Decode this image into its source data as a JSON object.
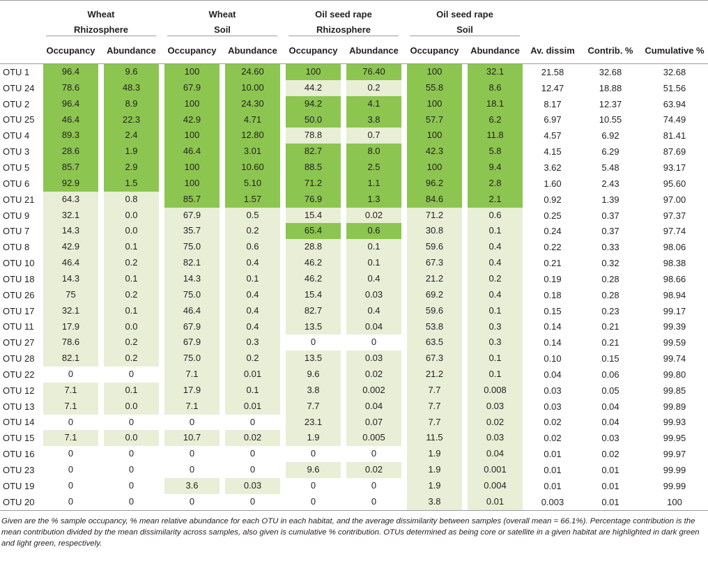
{
  "groups": [
    {
      "line1": "Wheat",
      "line2": "Rhizosphere"
    },
    {
      "line1": "Wheat",
      "line2": "Soil"
    },
    {
      "line1": "Oil seed rape",
      "line2": "Rhizosphere"
    },
    {
      "line1": "Oil seed rape",
      "line2": "Soil"
    }
  ],
  "headers": {
    "occupancy": "Occupancy",
    "abundance": "Abundance",
    "av_dissim": "Av. dissim",
    "contrib": "Contrib. %",
    "cumulative": "Cumulative %"
  },
  "rows": [
    {
      "otu": "OTU 1",
      "v": [
        "96.4",
        "9.6",
        "100",
        "24.60",
        "100",
        "76.40",
        "100",
        "32.1"
      ],
      "h": [
        "c",
        "c",
        "c",
        "c",
        "c",
        "c",
        "c",
        "c"
      ],
      "av": "21.58",
      "contrib": "32.68",
      "cum": "32.68"
    },
    {
      "otu": "OTU 24",
      "v": [
        "78.6",
        "48.3",
        "67.9",
        "10.00",
        "44.2",
        "0.2",
        "55.8",
        "8.6"
      ],
      "h": [
        "c",
        "c",
        "c",
        "c",
        "s",
        "s",
        "c",
        "c"
      ],
      "av": "12.47",
      "contrib": "18.88",
      "cum": "51.56"
    },
    {
      "otu": "OTU 2",
      "v": [
        "96.4",
        "8.9",
        "100",
        "24.30",
        "94.2",
        "4.1",
        "100",
        "18.1"
      ],
      "h": [
        "c",
        "c",
        "c",
        "c",
        "c",
        "c",
        "c",
        "c"
      ],
      "av": "8.17",
      "contrib": "12.37",
      "cum": "63.94"
    },
    {
      "otu": "OTU 25",
      "v": [
        "46.4",
        "22.3",
        "42.9",
        "4.71",
        "50.0",
        "3.8",
        "57.7",
        "6.2"
      ],
      "h": [
        "c",
        "c",
        "c",
        "c",
        "c",
        "c",
        "c",
        "c"
      ],
      "av": "6.97",
      "contrib": "10.55",
      "cum": "74.49"
    },
    {
      "otu": "OTU 4",
      "v": [
        "89.3",
        "2.4",
        "100",
        "12.80",
        "78.8",
        "0.7",
        "100",
        "11.8"
      ],
      "h": [
        "c",
        "c",
        "c",
        "c",
        "s",
        "s",
        "c",
        "c"
      ],
      "av": "4.57",
      "contrib": "6.92",
      "cum": "81.41"
    },
    {
      "otu": "OTU 3",
      "v": [
        "28.6",
        "1.9",
        "46.4",
        "3.01",
        "82.7",
        "8.0",
        "42.3",
        "5.8"
      ],
      "h": [
        "c",
        "c",
        "c",
        "c",
        "c",
        "c",
        "c",
        "c"
      ],
      "av": "4.15",
      "contrib": "6.29",
      "cum": "87.69"
    },
    {
      "otu": "OTU 5",
      "v": [
        "85.7",
        "2.9",
        "100",
        "10.60",
        "88.5",
        "2.5",
        "100",
        "9.4"
      ],
      "h": [
        "c",
        "c",
        "c",
        "c",
        "c",
        "c",
        "c",
        "c"
      ],
      "av": "3.62",
      "contrib": "5.48",
      "cum": "93.17"
    },
    {
      "otu": "OTU 6",
      "v": [
        "92.9",
        "1.5",
        "100",
        "5.10",
        "71.2",
        "1.1",
        "96.2",
        "2.8"
      ],
      "h": [
        "c",
        "c",
        "c",
        "c",
        "c",
        "c",
        "c",
        "c"
      ],
      "av": "1.60",
      "contrib": "2.43",
      "cum": "95.60"
    },
    {
      "otu": "OTU 21",
      "v": [
        "64.3",
        "0.8",
        "85.7",
        "1.57",
        "76.9",
        "1.3",
        "84.6",
        "2.1"
      ],
      "h": [
        "s",
        "s",
        "c",
        "c",
        "c",
        "c",
        "c",
        "c"
      ],
      "av": "0.92",
      "contrib": "1.39",
      "cum": "97.00"
    },
    {
      "otu": "OTU 9",
      "v": [
        "32.1",
        "0.0",
        "67.9",
        "0.5",
        "15.4",
        "0.02",
        "71.2",
        "0.6"
      ],
      "h": [
        "s",
        "s",
        "s",
        "s",
        "s",
        "s",
        "s",
        "s"
      ],
      "av": "0.25",
      "contrib": "0.37",
      "cum": "97.37"
    },
    {
      "otu": "OTU 7",
      "v": [
        "14.3",
        "0.0",
        "35.7",
        "0.2",
        "65.4",
        "0.6",
        "30.8",
        "0.1"
      ],
      "h": [
        "s",
        "s",
        "s",
        "s",
        "c",
        "c",
        "s",
        "s"
      ],
      "av": "0.24",
      "contrib": "0.37",
      "cum": "97.74"
    },
    {
      "otu": "OTU 8",
      "v": [
        "42.9",
        "0.1",
        "75.0",
        "0.6",
        "28.8",
        "0.1",
        "59.6",
        "0.4"
      ],
      "h": [
        "s",
        "s",
        "s",
        "s",
        "s",
        "s",
        "s",
        "s"
      ],
      "av": "0.22",
      "contrib": "0.33",
      "cum": "98.06"
    },
    {
      "otu": "OTU 10",
      "v": [
        "46.4",
        "0.2",
        "82.1",
        "0.4",
        "46.2",
        "0.1",
        "67.3",
        "0.4"
      ],
      "h": [
        "s",
        "s",
        "s",
        "s",
        "s",
        "s",
        "s",
        "s"
      ],
      "av": "0.21",
      "contrib": "0.32",
      "cum": "98.38"
    },
    {
      "otu": "OTU 18",
      "v": [
        "14.3",
        "0.1",
        "14.3",
        "0.1",
        "46.2",
        "0.4",
        "21.2",
        "0.2"
      ],
      "h": [
        "s",
        "s",
        "s",
        "s",
        "s",
        "s",
        "s",
        "s"
      ],
      "av": "0.19",
      "contrib": "0.28",
      "cum": "98.66"
    },
    {
      "otu": "OTU 26",
      "v": [
        "75",
        "0.2",
        "75.0",
        "0.4",
        "15.4",
        "0.03",
        "69.2",
        "0.4"
      ],
      "h": [
        "s",
        "s",
        "s",
        "s",
        "s",
        "s",
        "s",
        "s"
      ],
      "av": "0.18",
      "contrib": "0.28",
      "cum": "98.94"
    },
    {
      "otu": "OTU 17",
      "v": [
        "32.1",
        "0.1",
        "46.4",
        "0.4",
        "82.7",
        "0.4",
        "59.6",
        "0.1"
      ],
      "h": [
        "s",
        "s",
        "s",
        "s",
        "s",
        "s",
        "s",
        "s"
      ],
      "av": "0.15",
      "contrib": "0.23",
      "cum": "99.17"
    },
    {
      "otu": "OTU 11",
      "v": [
        "17.9",
        "0.0",
        "67.9",
        "0.4",
        "13.5",
        "0.04",
        "53.8",
        "0.3"
      ],
      "h": [
        "s",
        "s",
        "s",
        "s",
        "s",
        "s",
        "s",
        "s"
      ],
      "av": "0.14",
      "contrib": "0.21",
      "cum": "99.39"
    },
    {
      "otu": "OTU 27",
      "v": [
        "78.6",
        "0.2",
        "67.9",
        "0.3",
        "0",
        "0",
        "63.5",
        "0.3"
      ],
      "h": [
        "s",
        "s",
        "s",
        "s",
        "n",
        "n",
        "s",
        "s"
      ],
      "av": "0.14",
      "contrib": "0.21",
      "cum": "99.59"
    },
    {
      "otu": "OTU 28",
      "v": [
        "82.1",
        "0.2",
        "75.0",
        "0.2",
        "13.5",
        "0.03",
        "67.3",
        "0.1"
      ],
      "h": [
        "s",
        "s",
        "s",
        "s",
        "s",
        "s",
        "s",
        "s"
      ],
      "av": "0.10",
      "contrib": "0.15",
      "cum": "99.74"
    },
    {
      "otu": "OTU 22",
      "v": [
        "0",
        "0",
        "7.1",
        "0.01",
        "9.6",
        "0.02",
        "21.2",
        "0.1"
      ],
      "h": [
        "n",
        "n",
        "s",
        "s",
        "s",
        "s",
        "s",
        "s"
      ],
      "av": "0.04",
      "contrib": "0.06",
      "cum": "99.80"
    },
    {
      "otu": "OTU 12",
      "v": [
        "7.1",
        "0.1",
        "17.9",
        "0.1",
        "3.8",
        "0.002",
        "7.7",
        "0.008"
      ],
      "h": [
        "s",
        "s",
        "s",
        "s",
        "s",
        "s",
        "s",
        "s"
      ],
      "av": "0.03",
      "contrib": "0.05",
      "cum": "99.85"
    },
    {
      "otu": "OTU 13",
      "v": [
        "7.1",
        "0.0",
        "7.1",
        "0.01",
        "7.7",
        "0.04",
        "7.7",
        "0.03"
      ],
      "h": [
        "s",
        "s",
        "s",
        "s",
        "s",
        "s",
        "s",
        "s"
      ],
      "av": "0.03",
      "contrib": "0.04",
      "cum": "99.89"
    },
    {
      "otu": "OTU 14",
      "v": [
        "0",
        "0",
        "0",
        "0",
        "23.1",
        "0.07",
        "7.7",
        "0.02"
      ],
      "h": [
        "n",
        "n",
        "n",
        "n",
        "s",
        "s",
        "s",
        "s"
      ],
      "av": "0.02",
      "contrib": "0.04",
      "cum": "99.93"
    },
    {
      "otu": "OTU 15",
      "v": [
        "7.1",
        "0.0",
        "10.7",
        "0.02",
        "1.9",
        "0.005",
        "11.5",
        "0.03"
      ],
      "h": [
        "s",
        "s",
        "s",
        "s",
        "s",
        "s",
        "s",
        "s"
      ],
      "av": "0.02",
      "contrib": "0.03",
      "cum": "99.95"
    },
    {
      "otu": "OTU 16",
      "v": [
        "0",
        "0",
        "0",
        "0",
        "0",
        "0",
        "1.9",
        "0.04"
      ],
      "h": [
        "n",
        "n",
        "n",
        "n",
        "n",
        "n",
        "s",
        "s"
      ],
      "av": "0.01",
      "contrib": "0.02",
      "cum": "99.97"
    },
    {
      "otu": "OTU 23",
      "v": [
        "0",
        "0",
        "0",
        "0",
        "9.6",
        "0.02",
        "1.9",
        "0.001"
      ],
      "h": [
        "n",
        "n",
        "n",
        "n",
        "s",
        "s",
        "s",
        "s"
      ],
      "av": "0.01",
      "contrib": "0.01",
      "cum": "99.99"
    },
    {
      "otu": "OTU 19",
      "v": [
        "0",
        "0",
        "3.6",
        "0.03",
        "0",
        "0",
        "1.9",
        "0.004"
      ],
      "h": [
        "n",
        "n",
        "s",
        "s",
        "n",
        "n",
        "s",
        "s"
      ],
      "av": "0.01",
      "contrib": "0.01",
      "cum": "99.99"
    },
    {
      "otu": "OTU 20",
      "v": [
        "0",
        "0",
        "0",
        "0",
        "0",
        "0",
        "3.8",
        "0.01"
      ],
      "h": [
        "n",
        "n",
        "n",
        "n",
        "n",
        "n",
        "s",
        "s"
      ],
      "av": "0.003",
      "contrib": "0.01",
      "cum": "100"
    }
  ],
  "caption": "Given are the % sample occupancy, % mean relative abundance for each OTU in each habitat, and the average dissimilarity between samples (overall mean = 66.1%). Percentage contribution is the mean contribution divided by the mean dissimilarity across samples, also given is cumulative % contribution. OTUs determined as being core or satellite in a given habitat are highlighted in dark green and light green, respectively.",
  "colors": {
    "core": "#8cc550",
    "satellite": "#e9eed7"
  }
}
